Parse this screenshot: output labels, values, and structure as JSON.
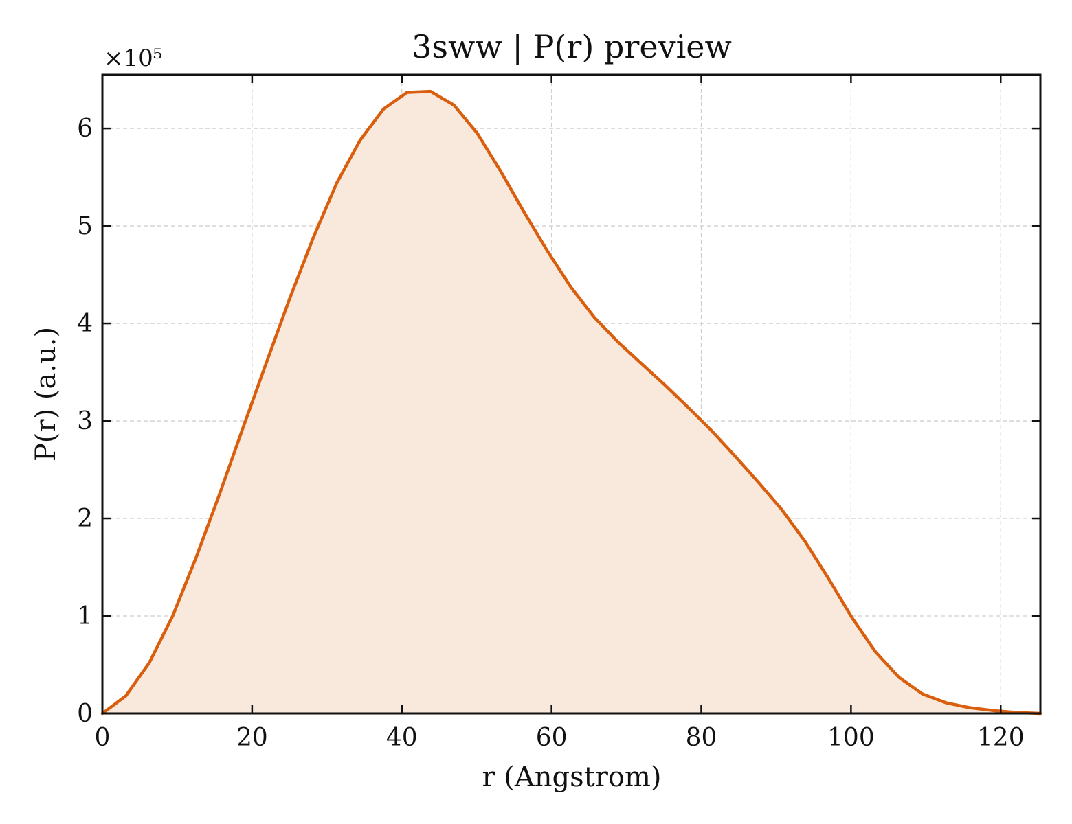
{
  "chart_data": {
    "type": "area",
    "title": "3sww | P(r) preview",
    "xlabel": "r (Angstrom)",
    "ylabel": "P(r) (a.u.)",
    "y_offset_label": "×10⁵",
    "xlim": [
      0,
      125.3
    ],
    "ylim": [
      0,
      6.55
    ],
    "y_scale_factor": 100000,
    "grid": true,
    "xticks": [
      0,
      20,
      40,
      60,
      80,
      100,
      120
    ],
    "xtick_labels": [
      "0",
      "20",
      "40",
      "60",
      "80",
      "100",
      "120"
    ],
    "yticks": [
      0,
      1,
      2,
      3,
      4,
      5,
      6
    ],
    "ytick_labels": [
      "0",
      "1",
      "2",
      "3",
      "4",
      "5",
      "6"
    ],
    "series": [
      {
        "x": [
          0,
          3.13,
          6.26,
          9.39,
          12.52,
          15.65,
          18.78,
          21.91,
          25.04,
          28.17,
          31.3,
          34.43,
          37.56,
          40.69,
          43.82,
          46.95,
          50.08,
          53.21,
          56.34,
          59.47,
          62.6,
          65.73,
          68.86,
          71.99,
          75.12,
          78.25,
          81.38,
          84.51,
          87.64,
          90.77,
          93.9,
          97.03,
          100.16,
          103.29,
          106.42,
          109.55,
          112.68,
          115.81,
          118.94,
          122.07,
          125.3
        ],
        "values": [
          0.0,
          0.18,
          0.52,
          1.0,
          1.6,
          2.25,
          2.93,
          3.6,
          4.26,
          4.88,
          5.44,
          5.88,
          6.2,
          6.37,
          6.38,
          6.24,
          5.95,
          5.56,
          5.14,
          4.74,
          4.37,
          4.06,
          3.81,
          3.59,
          3.37,
          3.14,
          2.9,
          2.64,
          2.37,
          2.09,
          1.76,
          1.38,
          0.98,
          0.63,
          0.37,
          0.2,
          0.11,
          0.06,
          0.03,
          0.01,
          0.0
        ],
        "color": "#d95f0e",
        "fill_color": "#f9e9dd"
      }
    ]
  }
}
